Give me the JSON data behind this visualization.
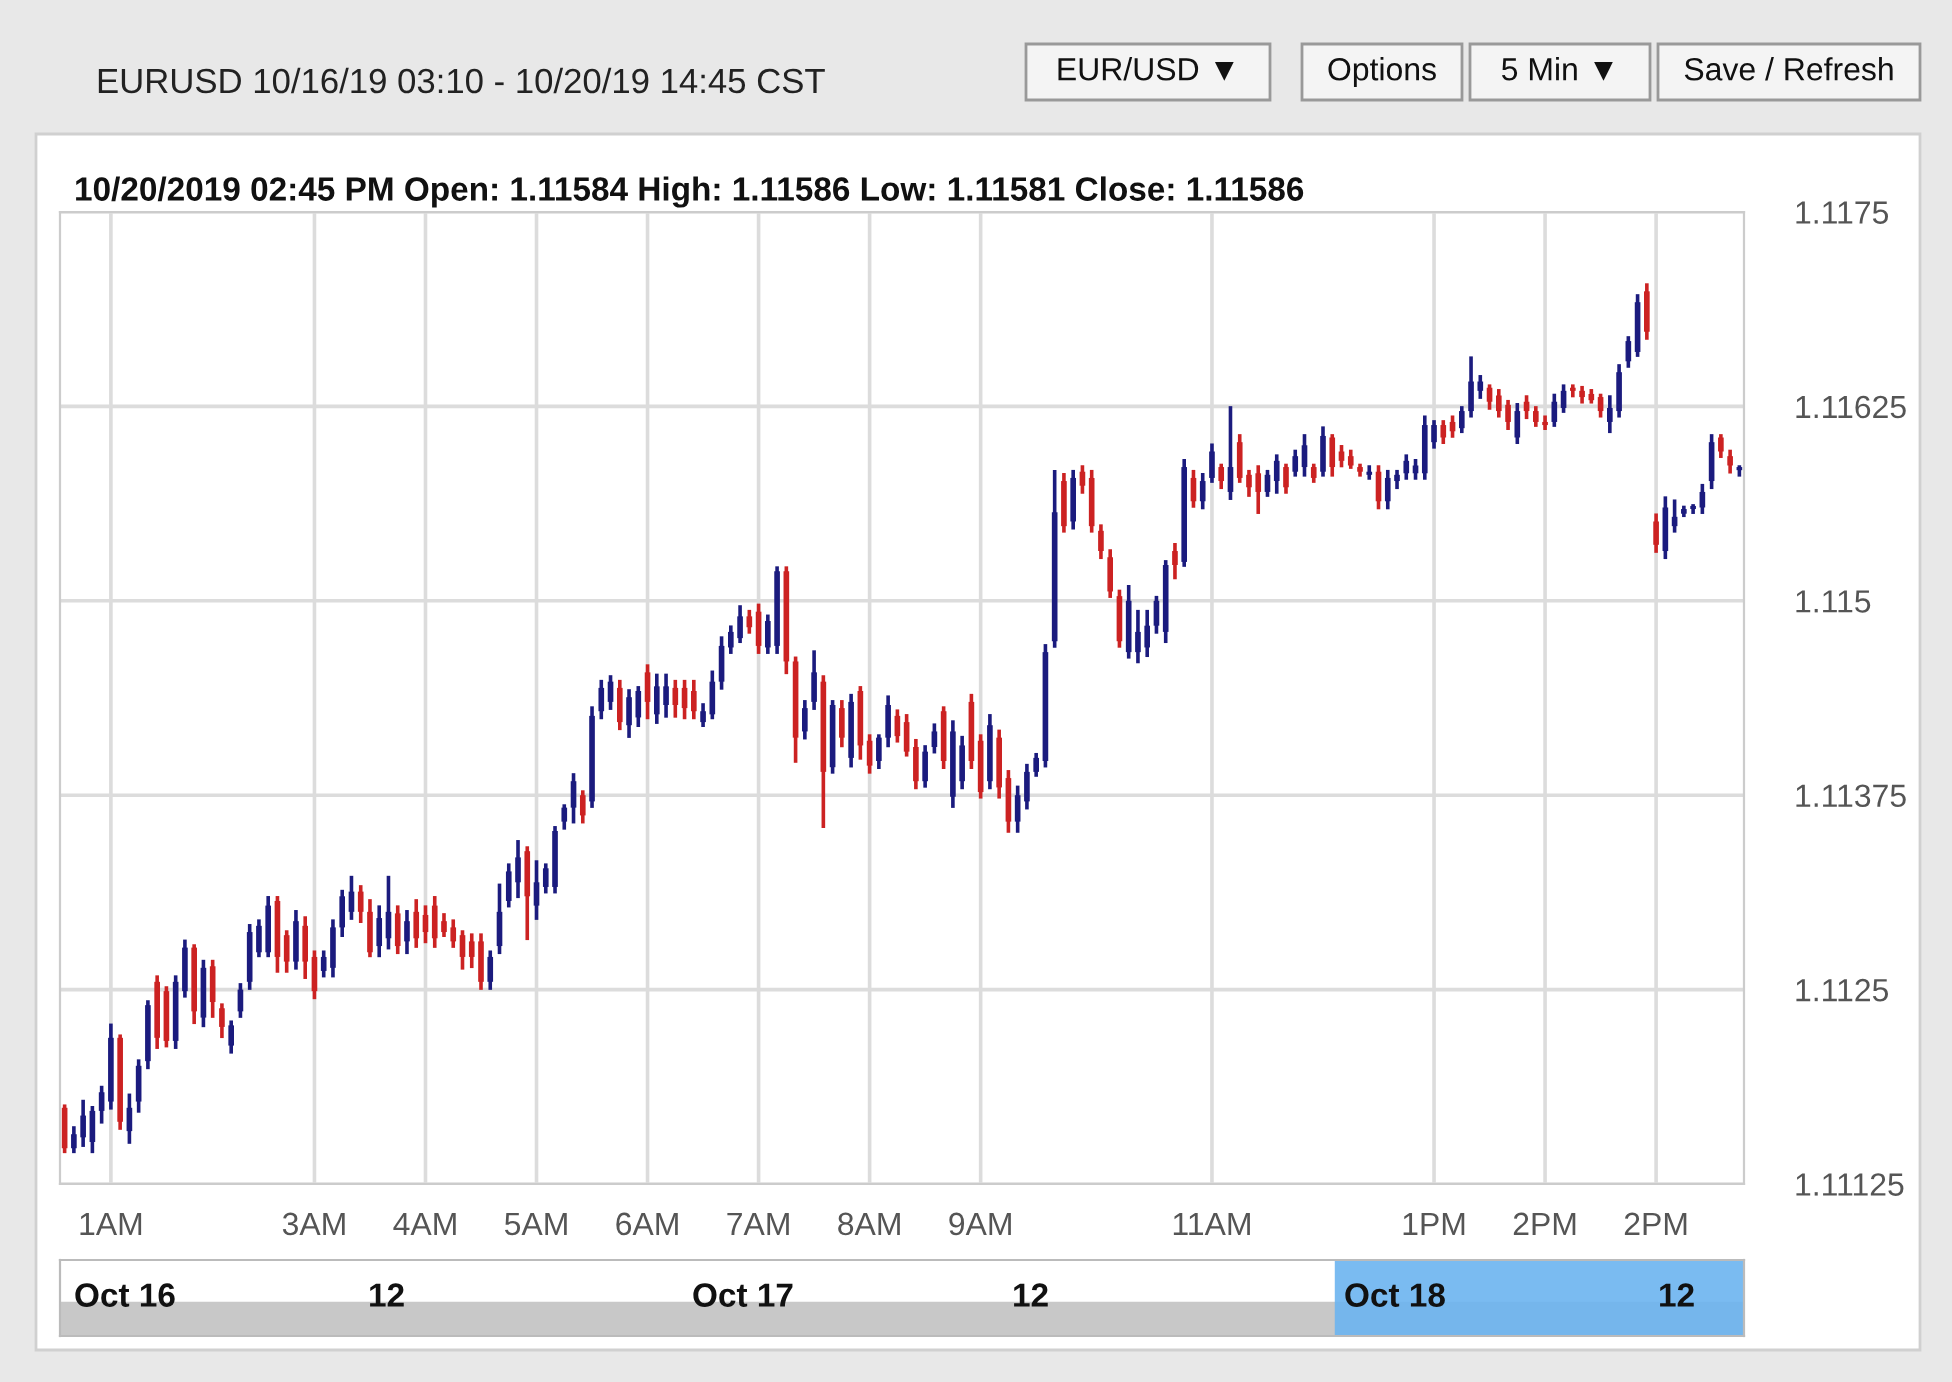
{
  "chart_data": {
    "type": "candlestick",
    "title": "EURUSD 10/16/19 03:10 - 10/20/19 14:45 CST",
    "subtitle": "10/20/2019 02:45 PM Open: 1.11584 High: 1.11586 Low: 1.11581 Close: 1.11586",
    "annotations": [
      "EUR/USD ▼",
      "Options",
      "5 Min ▼",
      "Save / Refresh",
      "Oct 16",
      "12",
      "Oct 17",
      "12",
      "Oct 18",
      "12"
    ],
    "categories": [
      null,
      null,
      null,
      null,
      null,
      "1AM",
      null,
      null,
      null,
      null,
      null,
      null,
      null,
      null,
      null,
      null,
      null,
      null,
      null,
      null,
      null,
      null,
      null,
      null,
      null,
      null,
      null,
      "3AM",
      null,
      null,
      null,
      null,
      null,
      null,
      null,
      null,
      null,
      null,
      null,
      "4AM",
      null,
      null,
      null,
      null,
      null,
      null,
      null,
      null,
      null,
      null,
      null,
      "5AM",
      null,
      null,
      null,
      null,
      null,
      null,
      null,
      null,
      null,
      null,
      null,
      "6AM",
      null,
      null,
      null,
      null,
      null,
      null,
      null,
      null,
      null,
      null,
      null,
      "7AM",
      null,
      null,
      null,
      null,
      null,
      null,
      null,
      null,
      null,
      null,
      null,
      "8AM",
      null,
      null,
      null,
      null,
      null,
      null,
      null,
      null,
      null,
      null,
      null,
      "9AM",
      null,
      null,
      null,
      null,
      null,
      null,
      null,
      null,
      null,
      null,
      null,
      null,
      null,
      null,
      null,
      null,
      null,
      null,
      null,
      null,
      null,
      null,
      null,
      null,
      "11AM",
      null,
      null,
      null,
      null,
      null,
      null,
      null,
      null,
      null,
      null,
      null,
      null,
      null,
      null,
      null,
      null,
      null,
      null,
      null,
      null,
      null,
      null,
      null,
      "1PM",
      null,
      null,
      null,
      null,
      null,
      null,
      null,
      null,
      null,
      null,
      null,
      "2PM",
      null,
      null,
      null,
      null,
      null,
      null,
      null,
      null,
      null,
      null,
      null,
      "2PM",
      null,
      null,
      null,
      null,
      null,
      null,
      null,
      null,
      null
    ],
    "ohlc": [
      [
        1.11174,
        1.11175,
        1.11146,
        1.11148
      ],
      [
        1.11148,
        1.11161,
        1.11146,
        1.11157
      ],
      [
        1.11155,
        1.11178,
        1.1115,
        1.11169
      ],
      [
        1.11152,
        1.11174,
        1.11146,
        1.11172
      ],
      [
        1.11172,
        1.11187,
        1.11165,
        1.11184
      ],
      [
        1.11178,
        1.11227,
        1.11174,
        1.11219
      ],
      [
        1.11219,
        1.1122,
        1.11161,
        1.11165
      ],
      [
        1.11159,
        1.11182,
        1.11152,
        1.11174
      ],
      [
        1.11178,
        1.11204,
        1.11172,
        1.11201
      ],
      [
        1.11204,
        1.11242,
        1.112,
        1.1124
      ],
      [
        1.11255,
        1.11258,
        1.11213,
        1.11219
      ],
      [
        1.11249,
        1.11251,
        1.11214,
        1.11217
      ],
      [
        1.11217,
        1.11258,
        1.11213,
        1.11255
      ],
      [
        1.11249,
        1.11281,
        1.11246,
        1.11277
      ],
      [
        1.11277,
        1.11278,
        1.11229,
        1.11236
      ],
      [
        1.11232,
        1.11268,
        1.11227,
        1.11264
      ],
      [
        1.11265,
        1.11268,
        1.11233,
        1.11242
      ],
      [
        1.11238,
        1.1124,
        1.1122,
        1.11226
      ],
      [
        1.11214,
        1.11229,
        1.1121,
        1.11227
      ],
      [
        1.11236,
        1.11253,
        1.11233,
        1.1125
      ],
      [
        1.11255,
        1.11291,
        1.11251,
        1.11287
      ],
      [
        1.11274,
        1.11294,
        1.11272,
        1.11291
      ],
      [
        1.11274,
        1.11309,
        1.11272,
        1.11304
      ],
      [
        1.11307,
        1.11309,
        1.11262,
        1.11271
      ],
      [
        1.11285,
        1.11287,
        1.11262,
        1.11268
      ],
      [
        1.11268,
        1.113,
        1.11264,
        1.11294
      ],
      [
        1.11291,
        1.11296,
        1.11258,
        1.11268
      ],
      [
        1.11271,
        1.11274,
        1.11245,
        1.11249
      ],
      [
        1.11262,
        1.11274,
        1.11259,
        1.11271
      ],
      [
        1.11264,
        1.11294,
        1.11259,
        1.1129
      ],
      [
        1.1129,
        1.11313,
        1.11285,
        1.1131
      ],
      [
        1.113,
        1.11322,
        1.11296,
        1.11313
      ],
      [
        1.11313,
        1.11316,
        1.11294,
        1.113
      ],
      [
        1.113,
        1.11307,
        1.11272,
        1.11274
      ],
      [
        1.11278,
        1.11303,
        1.11272,
        1.11296
      ],
      [
        1.11283,
        1.11322,
        1.11277,
        1.113
      ],
      [
        1.11299,
        1.11303,
        1.11274,
        1.11278
      ],
      [
        1.11281,
        1.113,
        1.11274,
        1.11294
      ],
      [
        1.113,
        1.11307,
        1.11278,
        1.11283
      ],
      [
        1.11298,
        1.11303,
        1.11281,
        1.11287
      ],
      [
        1.11304,
        1.11309,
        1.11278,
        1.11283
      ],
      [
        1.11294,
        1.11298,
        1.11285,
        1.11287
      ],
      [
        1.1129,
        1.11294,
        1.11278,
        1.11281
      ],
      [
        1.11285,
        1.11287,
        1.11264,
        1.11271
      ],
      [
        1.11281,
        1.11285,
        1.11265,
        1.11271
      ],
      [
        1.11281,
        1.11285,
        1.11251,
        1.11255
      ],
      [
        1.11255,
        1.11274,
        1.11251,
        1.11271
      ],
      [
        1.11278,
        1.11317,
        1.11274,
        1.113
      ],
      [
        1.11307,
        1.1133,
        1.11304,
        1.11326
      ],
      [
        1.11319,
        1.11345,
        1.1131,
        1.11335
      ],
      [
        1.11339,
        1.11341,
        1.11283,
        1.1131
      ],
      [
        1.11304,
        1.11332,
        1.11296,
        1.11319
      ],
      [
        1.11316,
        1.1133,
        1.11313,
        1.11328
      ],
      [
        1.11316,
        1.11354,
        1.11313,
        1.11352
      ],
      [
        1.11358,
        1.11368,
        1.11354,
        1.11367
      ],
      [
        1.11367,
        1.11388,
        1.11358,
        1.11384
      ],
      [
        1.11375,
        1.11377,
        1.11358,
        1.11362
      ],
      [
        1.11371,
        1.11431,
        1.11368,
        1.11426
      ],
      [
        1.11429,
        1.11448,
        1.11425,
        1.11444
      ],
      [
        1.11435,
        1.11451,
        1.11431,
        1.11448
      ],
      [
        1.11444,
        1.11448,
        1.11418,
        1.11422
      ],
      [
        1.1142,
        1.11442,
        1.11413,
        1.11438
      ],
      [
        1.11425,
        1.11444,
        1.1142,
        1.11442
      ],
      [
        1.11454,
        1.11458,
        1.11425,
        1.11435
      ],
      [
        1.11427,
        1.11452,
        1.11422,
        1.11445
      ],
      [
        1.11433,
        1.11452,
        1.11426,
        1.11445
      ],
      [
        1.11444,
        1.11448,
        1.11426,
        1.11433
      ],
      [
        1.11444,
        1.11448,
        1.11425,
        1.11431
      ],
      [
        1.11442,
        1.11448,
        1.11425,
        1.11429
      ],
      [
        1.11422,
        1.11433,
        1.1142,
        1.11429
      ],
      [
        1.11427,
        1.11454,
        1.11425,
        1.11448
      ],
      [
        1.11448,
        1.11476,
        1.11444,
        1.11471
      ],
      [
        1.1147,
        1.11483,
        1.11467,
        1.1148
      ],
      [
        1.11476,
        1.11496,
        1.11474,
        1.1149
      ],
      [
        1.1149,
        1.11493,
        1.1148,
        1.11483
      ],
      [
        1.11493,
        1.11497,
        1.11467,
        1.11471
      ],
      [
        1.1147,
        1.1149,
        1.11467,
        1.11487
      ],
      [
        1.11471,
        1.11521,
        1.11467,
        1.11519
      ],
      [
        1.11519,
        1.11521,
        1.11454,
        1.11461
      ],
      [
        1.11461,
        1.11463,
        1.11397,
        1.11412
      ],
      [
        1.11416,
        1.11435,
        1.11412,
        1.11431
      ],
      [
        1.11435,
        1.11467,
        1.11431,
        1.11454
      ],
      [
        1.11448,
        1.11451,
        1.11355,
        1.1139
      ],
      [
        1.11393,
        1.11435,
        1.1139,
        1.11433
      ],
      [
        1.11431,
        1.11435,
        1.11407,
        1.11412
      ],
      [
        1.11399,
        1.11439,
        1.11394,
        1.11435
      ],
      [
        1.11442,
        1.11444,
        1.11399,
        1.11407
      ],
      [
        1.1141,
        1.11413,
        1.1139,
        1.11394
      ],
      [
        1.11397,
        1.11413,
        1.11393,
        1.11412
      ],
      [
        1.11412,
        1.11438,
        1.11407,
        1.11433
      ],
      [
        1.11426,
        1.11429,
        1.1141,
        1.11413
      ],
      [
        1.11422,
        1.11426,
        1.11401,
        1.11403
      ],
      [
        1.11406,
        1.1141,
        1.1138,
        1.11384
      ],
      [
        1.11384,
        1.11406,
        1.11381,
        1.11403
      ],
      [
        1.11406,
        1.1142,
        1.11403,
        1.11416
      ],
      [
        1.11429,
        1.11431,
        1.11393,
        1.11397
      ],
      [
        1.11374,
        1.11422,
        1.11368,
        1.11416
      ],
      [
        1.11384,
        1.11412,
        1.1138,
        1.11407
      ],
      [
        1.11435,
        1.11439,
        1.11393,
        1.11397
      ],
      [
        1.1141,
        1.11413,
        1.11374,
        1.11377
      ],
      [
        1.11384,
        1.11426,
        1.1138,
        1.1142
      ],
      [
        1.11412,
        1.11416,
        1.11374,
        1.1138
      ],
      [
        1.11386,
        1.1139,
        1.11352,
        1.11358
      ],
      [
        1.11358,
        1.1138,
        1.11352,
        1.11375
      ],
      [
        1.11371,
        1.11394,
        1.11367,
        1.1139
      ],
      [
        1.1139,
        1.11401,
        1.11388,
        1.11399
      ],
      [
        1.11397,
        1.11471,
        1.11394,
        1.11467
      ],
      [
        1.11474,
        1.11583,
        1.11471,
        1.11557
      ],
      [
        1.11577,
        1.11581,
        1.11545,
        1.11548
      ],
      [
        1.11551,
        1.11583,
        1.11547,
        1.11579
      ],
      [
        1.11583,
        1.11586,
        1.1157,
        1.11574
      ],
      [
        1.11579,
        1.11583,
        1.11545,
        1.11548
      ],
      [
        1.11545,
        1.11548,
        1.11528,
        1.11532
      ],
      [
        1.11528,
        1.11532,
        1.11503,
        1.11506
      ],
      [
        1.11503,
        1.11506,
        1.11471,
        1.11474
      ],
      [
        1.11467,
        1.11509,
        1.11464,
        1.115
      ],
      [
        1.11467,
        1.11493,
        1.11461,
        1.1148
      ],
      [
        1.1147,
        1.11493,
        1.11465,
        1.11484
      ],
      [
        1.11484,
        1.11502,
        1.1148,
        1.115
      ],
      [
        1.1148,
        1.11525,
        1.11474,
        1.11523
      ],
      [
        1.11532,
        1.11536,
        1.11515,
        1.11523
      ],
      [
        1.11525,
        1.1159,
        1.11523,
        1.11586
      ],
      [
        1.11579,
        1.11583,
        1.11561,
        1.11564
      ],
      [
        1.11564,
        1.11581,
        1.1156,
        1.11577
      ],
      [
        1.11579,
        1.116,
        1.11577,
        1.11596
      ],
      [
        1.11586,
        1.11587,
        1.11573,
        1.11577
      ],
      [
        1.1157,
        1.11624,
        1.11566,
        1.11586
      ],
      [
        1.11602,
        1.11606,
        1.11577,
        1.11579
      ],
      [
        1.11581,
        1.11583,
        1.11568,
        1.11573
      ],
      [
        1.11582,
        1.11586,
        1.11557,
        1.1157
      ],
      [
        1.1157,
        1.11583,
        1.11568,
        1.11581
      ],
      [
        1.11577,
        1.11593,
        1.1157,
        1.1159
      ],
      [
        1.11586,
        1.11587,
        1.1157,
        1.11573
      ],
      [
        1.11583,
        1.11596,
        1.11581,
        1.11593
      ],
      [
        1.11586,
        1.11606,
        1.11581,
        1.116
      ],
      [
        1.11586,
        1.11587,
        1.11577,
        1.11579
      ],
      [
        1.11583,
        1.11611,
        1.11581,
        1.11606
      ],
      [
        1.11605,
        1.11606,
        1.11581,
        1.11586
      ],
      [
        1.11596,
        1.11599,
        1.11587,
        1.1159
      ],
      [
        1.11593,
        1.11596,
        1.11586,
        1.11587
      ],
      [
        1.11586,
        1.11587,
        1.11581,
        1.11583
      ],
      [
        1.11581,
        1.11586,
        1.11579,
        1.11583
      ],
      [
        1.11583,
        1.11586,
        1.1156,
        1.11564
      ],
      [
        1.11564,
        1.11583,
        1.1156,
        1.11579
      ],
      [
        1.11577,
        1.11583,
        1.11573,
        1.11581
      ],
      [
        1.11582,
        1.11593,
        1.11579,
        1.1159
      ],
      [
        1.11582,
        1.1159,
        1.11579,
        1.11587
      ],
      [
        1.11582,
        1.11618,
        1.11579,
        1.11613
      ],
      [
        1.11602,
        1.11615,
        1.11599,
        1.11613
      ],
      [
        1.11613,
        1.11615,
        1.11602,
        1.11605
      ],
      [
        1.11615,
        1.11618,
        1.11606,
        1.11609
      ],
      [
        1.11611,
        1.11624,
        1.11609,
        1.11622
      ],
      [
        1.11622,
        1.11656,
        1.11619,
        1.11641
      ],
      [
        1.11635,
        1.11644,
        1.11631,
        1.11641
      ],
      [
        1.11637,
        1.11638,
        1.11624,
        1.11628
      ],
      [
        1.11632,
        1.11635,
        1.11619,
        1.11622
      ],
      [
        1.11626,
        1.11628,
        1.11611,
        1.11615
      ],
      [
        1.11605,
        1.11626,
        1.11602,
        1.11622
      ],
      [
        1.11628,
        1.11631,
        1.11618,
        1.11622
      ],
      [
        1.11622,
        1.11624,
        1.11613,
        1.11615
      ],
      [
        1.11615,
        1.11618,
        1.11611,
        1.11613
      ],
      [
        1.11615,
        1.11632,
        1.11613,
        1.11628
      ],
      [
        1.11624,
        1.11638,
        1.11622,
        1.11635
      ],
      [
        1.11637,
        1.11638,
        1.11632,
        1.11635
      ],
      [
        1.11635,
        1.11637,
        1.11628,
        1.11631
      ],
      [
        1.11633,
        1.11635,
        1.11628,
        1.11629
      ],
      [
        1.11631,
        1.11632,
        1.11619,
        1.11622
      ],
      [
        1.11615,
        1.11631,
        1.11609,
        1.11624
      ],
      [
        1.11622,
        1.11651,
        1.11619,
        1.11647
      ],
      [
        1.11654,
        1.11669,
        1.11651,
        1.11667
      ],
      [
        1.1166,
        1.11696,
        1.11658,
        1.11692
      ],
      [
        1.11699,
        1.11703,
        1.11669,
        1.11673
      ],
      [
        1.11551,
        1.11555,
        1.11532,
        1.11536
      ],
      [
        1.11532,
        1.11566,
        1.11528,
        1.1156
      ],
      [
        1.11548,
        1.11564,
        1.11545,
        1.11554
      ],
      [
        1.11556,
        1.1156,
        1.11555,
        1.11559
      ],
      [
        1.11559,
        1.11561,
        1.11557,
        1.11561
      ],
      [
        1.1156,
        1.11574,
        1.11557,
        1.1157
      ],
      [
        1.11577,
        1.11606,
        1.11573,
        1.11602
      ],
      [
        1.11605,
        1.11606,
        1.11593,
        1.11596
      ],
      [
        1.11593,
        1.11596,
        1.11583,
        1.11587
      ],
      [
        1.11584,
        1.11586,
        1.11581,
        1.11586
      ]
    ],
    "colors": [
      "#cc2222",
      "#1b1b7e",
      "#1b1b7e",
      "#1b1b7e",
      "#1b1b7e",
      "#1b1b7e",
      "#cc2222",
      "#1b1b7e",
      "#1b1b7e",
      "#1b1b7e",
      "#cc2222",
      "#cc2222",
      "#1b1b7e",
      "#1b1b7e",
      "#cc2222",
      "#1b1b7e",
      "#cc2222",
      "#cc2222",
      "#1b1b7e",
      "#1b1b7e",
      "#1b1b7e",
      "#1b1b7e",
      "#1b1b7e",
      "#cc2222",
      "#cc2222",
      "#1b1b7e",
      "#cc2222",
      "#cc2222",
      "#1b1b7e",
      "#1b1b7e",
      "#1b1b7e",
      "#1b1b7e",
      "#cc2222",
      "#cc2222",
      "#1b1b7e",
      "#1b1b7e",
      "#cc2222",
      "#1b1b7e",
      "#cc2222",
      "#cc2222",
      "#cc2222",
      "#cc2222",
      "#cc2222",
      "#cc2222",
      "#cc2222",
      "#cc2222",
      "#1b1b7e",
      "#1b1b7e",
      "#1b1b7e",
      "#1b1b7e",
      "#cc2222",
      "#1b1b7e",
      "#1b1b7e",
      "#1b1b7e",
      "#1b1b7e",
      "#1b1b7e",
      "#cc2222",
      "#1b1b7e",
      "#1b1b7e",
      "#1b1b7e",
      "#cc2222",
      "#1b1b7e",
      "#1b1b7e",
      "#cc2222",
      "#1b1b7e",
      "#1b1b7e",
      "#cc2222",
      "#cc2222",
      "#cc2222",
      "#1b1b7e",
      "#1b1b7e",
      "#1b1b7e",
      "#1b1b7e",
      "#1b1b7e",
      "#cc2222",
      "#cc2222",
      "#1b1b7e",
      "#1b1b7e",
      "#cc2222",
      "#cc2222",
      "#1b1b7e",
      "#1b1b7e",
      "#cc2222",
      "#1b1b7e",
      "#cc2222",
      "#1b1b7e",
      "#cc2222",
      "#cc2222",
      "#1b1b7e",
      "#1b1b7e",
      "#cc2222",
      "#cc2222",
      "#cc2222",
      "#1b1b7e",
      "#1b1b7e",
      "#cc2222",
      "#1b1b7e",
      "#1b1b7e",
      "#cc2222",
      "#cc2222",
      "#1b1b7e",
      "#cc2222",
      "#cc2222",
      "#1b1b7e",
      "#1b1b7e",
      "#1b1b7e",
      "#1b1b7e",
      "#1b1b7e",
      "#cc2222",
      "#1b1b7e",
      "#cc2222",
      "#cc2222",
      "#cc2222",
      "#cc2222",
      "#cc2222",
      "#1b1b7e",
      "#1b1b7e",
      "#1b1b7e",
      "#1b1b7e",
      "#1b1b7e",
      "#cc2222",
      "#1b1b7e",
      "#cc2222",
      "#1b1b7e",
      "#1b1b7e",
      "#cc2222",
      "#1b1b7e",
      "#cc2222",
      "#cc2222",
      "#cc2222",
      "#1b1b7e",
      "#1b1b7e",
      "#cc2222",
      "#1b1b7e",
      "#1b1b7e",
      "#cc2222",
      "#1b1b7e",
      "#cc2222",
      "#cc2222",
      "#cc2222",
      "#cc2222",
      "#1b1b7e",
      "#cc2222",
      "#1b1b7e",
      "#1b1b7e",
      "#1b1b7e",
      "#1b1b7e",
      "#1b1b7e",
      "#1b1b7e",
      "#cc2222",
      "#cc2222",
      "#1b1b7e",
      "#1b1b7e",
      "#1b1b7e",
      "#cc2222",
      "#cc2222",
      "#cc2222",
      "#1b1b7e",
      "#cc2222",
      "#cc2222",
      "#cc2222",
      "#1b1b7e",
      "#1b1b7e",
      "#cc2222",
      "#cc2222",
      "#cc2222",
      "#cc2222",
      "#1b1b7e",
      "#1b1b7e",
      "#1b1b7e",
      "#1b1b7e",
      "#cc2222",
      "#cc2222",
      "#1b1b7e",
      "#1b1b7e",
      "#1b1b7e",
      "#1b1b7e",
      "#1b1b7e",
      "#1b1b7e",
      "#cc2222",
      "#cc2222",
      "#1b1b7e"
    ],
    "ylim": [
      1.11125,
      1.1175
    ],
    "yticks": [
      1.11125,
      1.1125,
      1.11375,
      1.115,
      1.11625,
      1.1175
    ],
    "grid": true
  }
}
